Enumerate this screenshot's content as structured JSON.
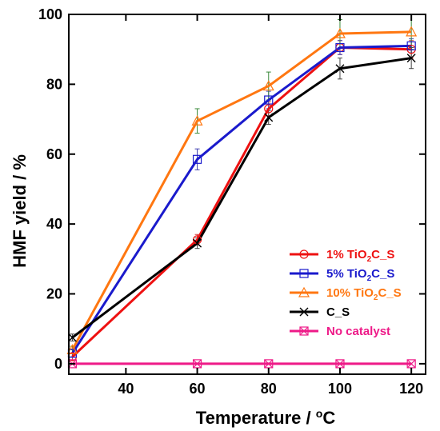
{
  "chart_data": {
    "type": "line",
    "xlabel": "Temperature / ",
    "xlabel_unit": "C",
    "xlabel_unit_sup": "o",
    "ylabel": "HMF yield / %",
    "xlim": [
      24,
      124
    ],
    "ylim": [
      -3,
      100
    ],
    "xticks": [
      40,
      60,
      80,
      100,
      120
    ],
    "yticks": [
      0,
      20,
      40,
      60,
      80,
      100
    ],
    "grid": false,
    "legend_position": "bottom-right",
    "series": [
      {
        "name": "1% TiO2C_S",
        "legend_prefix": "1% TiO",
        "legend_sub": "2",
        "legend_suffix": "C_S",
        "color": "#ee1111",
        "marker": "circle",
        "x": [
          25,
          60,
          80,
          100,
          120
        ],
        "y": [
          2,
          35.5,
          73,
          90.5,
          90
        ],
        "err": [
          1,
          1.5,
          2,
          2,
          2.5
        ]
      },
      {
        "name": "5% TiO2C_S",
        "legend_prefix": "5% TiO",
        "legend_sub": "2",
        "legend_suffix": "C_S",
        "color": "#1a1acc",
        "marker": "square",
        "x": [
          25,
          60,
          80,
          100,
          120
        ],
        "y": [
          3,
          58.5,
          75.5,
          90.5,
          91
        ],
        "err": [
          1,
          3,
          2.5,
          2,
          2
        ]
      },
      {
        "name": "10% TiO2C_S",
        "legend_prefix": "10% TiO",
        "legend_sub": "2",
        "legend_suffix": "C_S",
        "color": "#ff7711",
        "marker": "triangle",
        "x": [
          25,
          60,
          80,
          100,
          120
        ],
        "y": [
          4,
          69.5,
          79.5,
          94.5,
          95
        ],
        "err": [
          1,
          3.5,
          4,
          4,
          5
        ]
      },
      {
        "name": "C_S",
        "legend_prefix": "C_S",
        "legend_sub": "",
        "legend_suffix": "",
        "color": "#000000",
        "marker": "x",
        "x": [
          25,
          60,
          80,
          100,
          120
        ],
        "y": [
          7.5,
          34.5,
          70.5,
          84.5,
          87.5
        ],
        "err": [
          1,
          1.5,
          2,
          3,
          3
        ]
      },
      {
        "name": "No catalyst",
        "legend_prefix": "No catalyst",
        "legend_sub": "",
        "legend_suffix": "",
        "color": "#ee1a88",
        "marker": "boxx",
        "x": [
          25,
          60,
          80,
          100,
          120
        ],
        "y": [
          0,
          0,
          0,
          0,
          0
        ],
        "err": [
          0,
          0,
          0,
          0,
          0
        ]
      }
    ]
  }
}
